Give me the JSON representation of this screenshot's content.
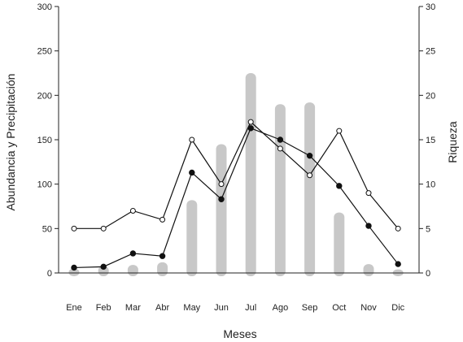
{
  "chart_data": {
    "type": "bar",
    "xlabel": "Meses",
    "ylabel_left": "Abundancia y Precipitación",
    "ylabel_right": "Riqueza",
    "categories": [
      "Ene",
      "Feb",
      "Mar",
      "Abr",
      "May",
      "Jun",
      "Jul",
      "Ago",
      "Sep",
      "Oct",
      "Nov",
      "Dic"
    ],
    "ylim_left": [
      0,
      300
    ],
    "yticks_left": [
      "0",
      "50",
      "100",
      "150",
      "200",
      "250",
      "300"
    ],
    "ylim_right": [
      0,
      30
    ],
    "yticks_right": [
      "0",
      "5",
      "10",
      "15",
      "20",
      "25",
      "30"
    ],
    "grid": false,
    "legend": "none",
    "series": [
      {
        "kind": "bar",
        "axis": "left",
        "color": "#c8c8c8",
        "values": [
          5,
          8,
          9,
          12,
          82,
          145,
          225,
          190,
          192,
          68,
          10,
          4
        ]
      },
      {
        "kind": "line",
        "axis": "right",
        "marker": "open-circle",
        "color": "#111111",
        "values": [
          5,
          5,
          7,
          6,
          15,
          10,
          17,
          14,
          11,
          16,
          9,
          5
        ]
      },
      {
        "kind": "line",
        "axis": "right",
        "marker": "filled-circle",
        "color": "#111111",
        "values": [
          0.6,
          0.7,
          2.2,
          1.9,
          11.3,
          8.3,
          16.3,
          15.0,
          13.2,
          9.8,
          5.3,
          1.0
        ]
      }
    ]
  }
}
